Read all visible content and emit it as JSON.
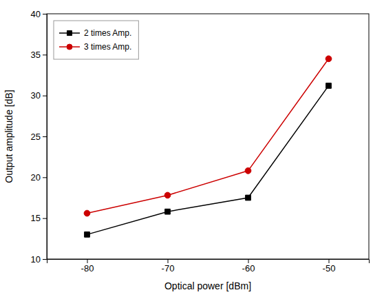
{
  "chart_data": {
    "type": "line",
    "x": [
      -80,
      -70,
      -60,
      -50
    ],
    "series": [
      {
        "name": "2 times Amp.",
        "color": "#000000",
        "marker": "square",
        "values": [
          13.0,
          15.8,
          17.5,
          31.2
        ]
      },
      {
        "name": "3 times Amp.",
        "color": "#cc0000",
        "marker": "circle",
        "values": [
          15.6,
          17.8,
          20.8,
          34.5
        ]
      }
    ],
    "xlabel": "Optical power [dBm]",
    "ylabel": "Output amplitude [dB]",
    "xlim": [
      -85,
      -45
    ],
    "ylim": [
      10,
      40
    ],
    "xticks": [
      -80,
      -70,
      -60,
      -50
    ],
    "yticks": [
      10,
      15,
      20,
      25,
      30,
      35,
      40
    ],
    "grid": false,
    "legend": "upper left"
  }
}
